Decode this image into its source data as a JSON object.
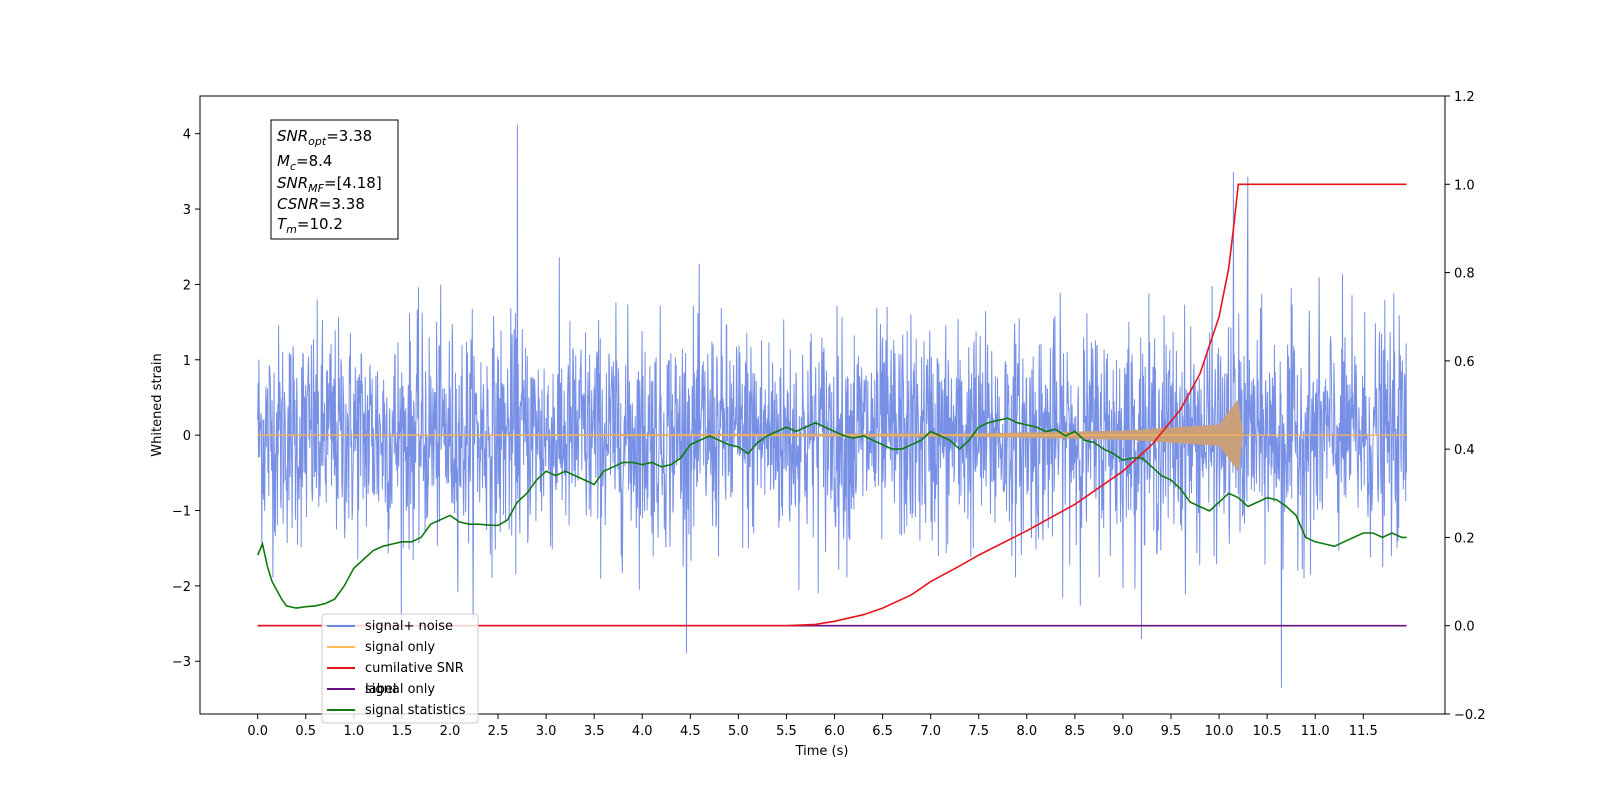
{
  "chart_data": {
    "type": "line",
    "xlabel": "Time (s)",
    "ylabel_left": "Whitened strain",
    "ylabel_right": "",
    "xlim": [
      -0.6,
      12.35
    ],
    "ylim_left": [
      -3.7,
      4.5
    ],
    "ylim_right": [
      -0.2,
      1.2
    ],
    "x_ticks": [
      "0.0",
      "0.5",
      "1.0",
      "1.5",
      "2.0",
      "2.5",
      "3.0",
      "3.5",
      "4.0",
      "4.5",
      "5.0",
      "5.5",
      "6.0",
      "6.5",
      "7.0",
      "7.5",
      "8.0",
      "8.5",
      "9.0",
      "9.5",
      "10.0",
      "10.5",
      "11.0",
      "11.5"
    ],
    "y_ticks_left": [
      "−3",
      "−2",
      "−1",
      "0",
      "1",
      "2",
      "3",
      "4"
    ],
    "y_ticks_right": [
      "−0.2",
      "0.0",
      "0.2",
      "0.4",
      "0.6",
      "0.8",
      "1.0",
      "1.2"
    ],
    "grid": false,
    "legend_position": "lower-left",
    "annotation": [
      {
        "base": "SNR",
        "sub": "opt",
        "value": "=3.38"
      },
      {
        "base": "M",
        "sub": "c",
        "value": "=8.4"
      },
      {
        "base": "SNR",
        "sub": "MF",
        "value": "=[4.18]"
      },
      {
        "base": "CSNR",
        "sub": "",
        "value": "=3.38"
      },
      {
        "base": "T",
        "sub": "m",
        "value": "=10.2"
      }
    ],
    "series": [
      {
        "name": "signal+ noise",
        "color": "#6b87e4",
        "axis": "left",
        "style": "noise band ~±1.5 with spikes to ~4.1",
        "x": [
          0.0,
          2.7,
          10.15,
          10.3,
          10.65,
          11.95
        ],
        "values": [
          0.2,
          4.12,
          3.49,
          3.43,
          -3.35,
          -0.5
        ]
      },
      {
        "name": "signal only",
        "color": "#ffbb55",
        "axis": "left",
        "style": "chirp growing to peak at merger",
        "x": [
          0.0,
          7.0,
          9.0,
          10.0,
          10.2,
          10.25,
          11.95
        ],
        "amplitude": [
          0.0,
          0.01,
          0.06,
          0.14,
          0.48,
          0.0,
          0.0
        ]
      },
      {
        "name": "cumilative SNR",
        "color": "#e8141c",
        "axis": "right",
        "x": [
          0.0,
          5.5,
          5.8,
          6.0,
          6.3,
          6.5,
          6.8,
          7.0,
          7.3,
          7.5,
          8.0,
          8.5,
          9.0,
          9.3,
          9.6,
          9.8,
          10.0,
          10.1,
          10.15,
          10.2,
          11.95
        ],
        "values": [
          0.0,
          0.0,
          0.003,
          0.01,
          0.025,
          0.04,
          0.07,
          0.1,
          0.135,
          0.16,
          0.215,
          0.275,
          0.35,
          0.41,
          0.49,
          0.57,
          0.7,
          0.81,
          0.9,
          1.0,
          1.0
        ]
      },
      {
        "name": "label",
        "color": "#6a1080",
        "axis": "right",
        "x": [
          0.0,
          11.95
        ],
        "values": [
          0.0,
          0.0
        ]
      },
      {
        "name": "signal only",
        "color": "#bbbbbb",
        "axis": "right",
        "style": "hidden behind legend",
        "x": [],
        "values": []
      },
      {
        "name": "signal statistics",
        "color": "#0f7a0f",
        "axis": "right",
        "x": [
          0.0,
          0.05,
          0.1,
          0.15,
          0.2,
          0.25,
          0.3,
          0.4,
          0.5,
          0.6,
          0.7,
          0.8,
          0.9,
          1.0,
          1.1,
          1.2,
          1.3,
          1.4,
          1.5,
          1.6,
          1.7,
          1.8,
          1.9,
          2.0,
          2.1,
          2.2,
          2.3,
          2.4,
          2.5,
          2.6,
          2.7,
          2.8,
          2.9,
          3.0,
          3.1,
          3.2,
          3.3,
          3.4,
          3.5,
          3.6,
          3.7,
          3.8,
          3.9,
          4.0,
          4.1,
          4.2,
          4.3,
          4.4,
          4.5,
          4.6,
          4.7,
          4.8,
          4.9,
          5.0,
          5.1,
          5.2,
          5.3,
          5.4,
          5.5,
          5.6,
          5.7,
          5.8,
          5.9,
          6.0,
          6.1,
          6.2,
          6.3,
          6.4,
          6.5,
          6.6,
          6.7,
          6.8,
          6.9,
          7.0,
          7.1,
          7.2,
          7.3,
          7.4,
          7.5,
          7.6,
          7.7,
          7.8,
          7.9,
          8.0,
          8.1,
          8.2,
          8.3,
          8.4,
          8.5,
          8.6,
          8.7,
          8.8,
          8.9,
          9.0,
          9.1,
          9.2,
          9.3,
          9.4,
          9.5,
          9.6,
          9.7,
          9.8,
          9.9,
          10.0,
          10.1,
          10.2,
          10.3,
          10.4,
          10.5,
          10.6,
          10.7,
          10.8,
          10.9,
          11.0,
          11.1,
          11.2,
          11.3,
          11.4,
          11.5,
          11.6,
          11.7,
          11.8,
          11.9,
          11.95
        ],
        "values": [
          0.16,
          0.185,
          0.135,
          0.1,
          0.08,
          0.06,
          0.045,
          0.04,
          0.043,
          0.045,
          0.05,
          0.06,
          0.09,
          0.13,
          0.15,
          0.17,
          0.18,
          0.185,
          0.19,
          0.19,
          0.2,
          0.23,
          0.24,
          0.25,
          0.235,
          0.23,
          0.23,
          0.228,
          0.227,
          0.24,
          0.28,
          0.3,
          0.33,
          0.35,
          0.34,
          0.35,
          0.34,
          0.33,
          0.32,
          0.35,
          0.36,
          0.37,
          0.37,
          0.365,
          0.37,
          0.36,
          0.365,
          0.38,
          0.41,
          0.42,
          0.43,
          0.42,
          0.41,
          0.405,
          0.39,
          0.415,
          0.43,
          0.44,
          0.45,
          0.44,
          0.45,
          0.46,
          0.45,
          0.44,
          0.43,
          0.425,
          0.43,
          0.42,
          0.41,
          0.4,
          0.4,
          0.41,
          0.42,
          0.44,
          0.43,
          0.42,
          0.4,
          0.42,
          0.45,
          0.46,
          0.465,
          0.47,
          0.46,
          0.455,
          0.45,
          0.44,
          0.445,
          0.43,
          0.44,
          0.42,
          0.415,
          0.4,
          0.39,
          0.375,
          0.38,
          0.38,
          0.36,
          0.34,
          0.33,
          0.31,
          0.28,
          0.27,
          0.26,
          0.28,
          0.3,
          0.29,
          0.27,
          0.28,
          0.29,
          0.285,
          0.27,
          0.25,
          0.2,
          0.19,
          0.185,
          0.18,
          0.19,
          0.2,
          0.21,
          0.21,
          0.2,
          0.21,
          0.2,
          0.2
        ]
      }
    ]
  }
}
